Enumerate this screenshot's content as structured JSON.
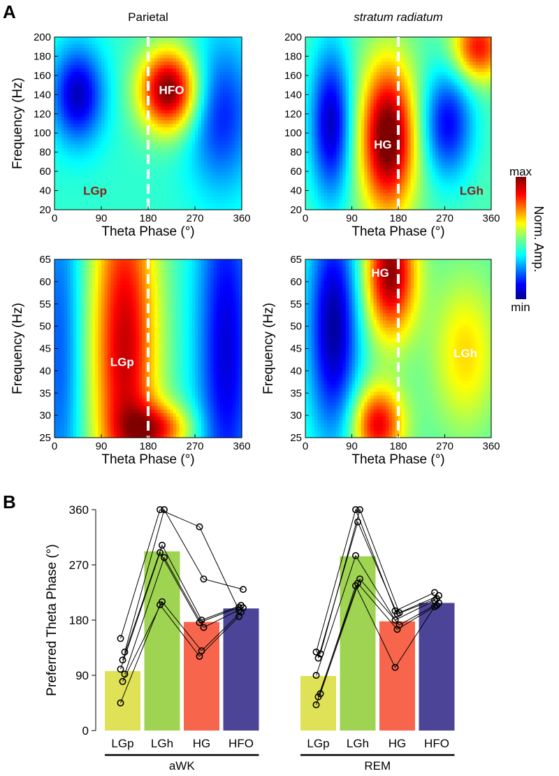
{
  "panel_labels": {
    "a": "A",
    "b": "B"
  },
  "colorbar": {
    "max_label": "max",
    "min_label": "min",
    "title": "Norm. Amp."
  },
  "colors": {
    "LGp": "#dfe156",
    "LGh": "#9fd352",
    "HG": "#f7664c",
    "HFO": "#4b4497",
    "label_dark": "#8b1a1a",
    "label_light": "#ffffff",
    "marker": "#000000",
    "dash": "#ffffff"
  },
  "chart_data": [
    {
      "type": "heatmap",
      "id": "parietal-high",
      "title": "Parietal",
      "title_italic": false,
      "xlabel": "Theta Phase (°)",
      "ylabel": "Frequency (Hz)",
      "xlim": [
        0,
        360
      ],
      "ylim": [
        20,
        200
      ],
      "xticks": [
        "0",
        "90",
        "180",
        "270",
        "360"
      ],
      "yticks": [
        "20",
        "40",
        "60",
        "80",
        "100",
        "120",
        "140",
        "160",
        "180",
        "200"
      ],
      "dashed_line_x": 180,
      "annotations": [
        {
          "text": "HFO",
          "x": 225,
          "y": 145,
          "color": "light"
        },
        {
          "text": "LGp",
          "x": 78,
          "y": 40,
          "color": "dark"
        }
      ],
      "blobs": [
        {
          "x": 220,
          "y": 145,
          "sx": 40,
          "sy": 30,
          "a": 1.0
        },
        {
          "x": 45,
          "y": 140,
          "sx": 35,
          "sy": 35,
          "a": -0.6
        },
        {
          "x": 320,
          "y": 120,
          "sx": 45,
          "sy": 55,
          "a": -0.45
        }
      ],
      "base": 0.42
    },
    {
      "type": "heatmap",
      "id": "radiatum-high",
      "title": "stratum radiatum",
      "title_italic": true,
      "xlabel": "Theta Phase (°)",
      "ylabel": "",
      "xlim": [
        0,
        360
      ],
      "ylim": [
        20,
        200
      ],
      "xticks": [
        "0",
        "90",
        "180",
        "270",
        "360"
      ],
      "yticks": [
        "20",
        "40",
        "60",
        "80",
        "100",
        "120",
        "140",
        "160",
        "180",
        "200"
      ],
      "dashed_line_x": 180,
      "annotations": [
        {
          "text": "HG",
          "x": 150,
          "y": 88,
          "color": "light"
        },
        {
          "text": "LGh",
          "x": 322,
          "y": 40,
          "color": "dark"
        }
      ],
      "blobs": [
        {
          "x": 160,
          "y": 95,
          "sx": 38,
          "sy": 55,
          "a": 1.0
        },
        {
          "x": 335,
          "y": 190,
          "sx": 35,
          "sy": 25,
          "a": 0.7
        },
        {
          "x": 50,
          "y": 110,
          "sx": 28,
          "sy": 55,
          "a": -0.65
        },
        {
          "x": 275,
          "y": 110,
          "sx": 35,
          "sy": 40,
          "a": -0.55
        }
      ],
      "base": 0.45
    },
    {
      "type": "heatmap",
      "id": "parietal-low",
      "title": "",
      "title_italic": false,
      "xlabel": "Theta Phase (°)",
      "ylabel": "Frequency (Hz)",
      "xlim": [
        0,
        360
      ],
      "ylim": [
        25,
        65
      ],
      "xticks": [
        "0",
        "90",
        "180",
        "270",
        "360"
      ],
      "yticks": [
        "25",
        "30",
        "35",
        "40",
        "45",
        "50",
        "55",
        "60",
        "65"
      ],
      "dashed_line_x": 180,
      "annotations": [
        {
          "text": "LGp",
          "x": 130,
          "y": 42,
          "color": "light"
        }
      ],
      "blobs": [
        {
          "x": 135,
          "y": 45,
          "sx": 45,
          "sy": 30,
          "a": 0.85
        },
        {
          "x": 200,
          "y": 27,
          "sx": 45,
          "sy": 4,
          "a": 0.6
        },
        {
          "x": 330,
          "y": 45,
          "sx": 40,
          "sy": 30,
          "a": -0.55
        },
        {
          "x": 10,
          "y": 45,
          "sx": 30,
          "sy": 30,
          "a": -0.35
        }
      ],
      "base": 0.42
    },
    {
      "type": "heatmap",
      "id": "radiatum-low",
      "title": "",
      "title_italic": false,
      "xlabel": "Theta Phase (°)",
      "ylabel": "Frequency (Hz)",
      "xlim": [
        0,
        360
      ],
      "ylim": [
        25,
        65
      ],
      "xticks": [
        "0",
        "90",
        "180",
        "270",
        "360"
      ],
      "yticks": [
        "25",
        "30",
        "35",
        "40",
        "45",
        "50",
        "55",
        "60",
        "65"
      ],
      "dashed_line_x": 180,
      "annotations": [
        {
          "text": "HG",
          "x": 145,
          "y": 62,
          "color": "light"
        },
        {
          "text": "LGh",
          "x": 310,
          "y": 44,
          "color": "light"
        }
      ],
      "blobs": [
        {
          "x": 165,
          "y": 62,
          "sx": 35,
          "sy": 10,
          "a": 0.9
        },
        {
          "x": 140,
          "y": 28,
          "sx": 35,
          "sy": 6,
          "a": 0.75
        },
        {
          "x": 310,
          "y": 44,
          "sx": 45,
          "sy": 12,
          "a": 0.35
        },
        {
          "x": 55,
          "y": 50,
          "sx": 35,
          "sy": 18,
          "a": -0.7
        }
      ],
      "base": 0.45
    },
    {
      "type": "bar",
      "ylabel": "Preferred Theta Phase (°)",
      "ylim": [
        0,
        360
      ],
      "yticks": [
        "0",
        "90",
        "180",
        "270",
        "360"
      ],
      "groups": [
        {
          "name": "aWK",
          "categories": [
            "LGp",
            "LGh",
            "HG",
            "HFO"
          ],
          "values": [
            97,
            292,
            177,
            199
          ],
          "points": [
            [
              45,
              80,
              92,
              100,
              115,
              128,
              150
            ],
            [
              205,
              210,
              282,
              290,
              302,
              360,
              360
            ],
            [
              121,
              130,
              168,
              176,
              180,
              247,
              332
            ],
            [
              186,
              193,
              200,
              201,
              204,
              230,
              196
            ]
          ]
        },
        {
          "name": "REM",
          "categories": [
            "LGp",
            "LGh",
            "HG",
            "HFO"
          ],
          "values": [
            89,
            284,
            178,
            208
          ],
          "points": [
            [
              42,
              55,
              60,
              90,
              118,
              125,
              128
            ],
            [
              236,
              240,
              247,
              285,
              340,
              360,
              360
            ],
            [
              103,
              165,
              172,
              180,
              190,
              192,
              195
            ],
            [
              202,
              204,
              208,
              212,
              215,
              220,
              225
            ]
          ]
        }
      ]
    }
  ]
}
